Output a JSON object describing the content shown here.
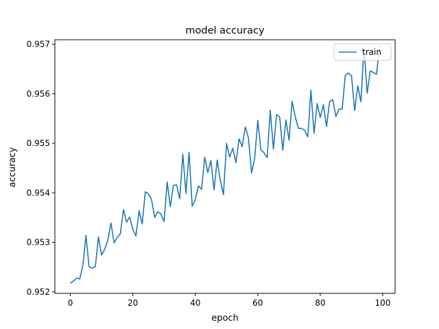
{
  "chart_data": {
    "type": "line",
    "title": "model accuracy",
    "xlabel": "epoch",
    "ylabel": "accuracy",
    "xlim": [
      -4.95,
      103.95
    ],
    "ylim": [
      0.95197,
      0.95709
    ],
    "x_ticks": [
      0,
      20,
      40,
      60,
      80,
      100
    ],
    "y_ticks": [
      0.952,
      0.953,
      0.954,
      0.955,
      0.956,
      0.957
    ],
    "x_tick_labels": [
      "0",
      "20",
      "40",
      "60",
      "80",
      "100"
    ],
    "y_tick_labels": [
      "0.952",
      "0.953",
      "0.954",
      "0.955",
      "0.956",
      "0.957"
    ],
    "grid": false,
    "legend": {
      "position": "top-right"
    },
    "series": [
      {
        "name": "train",
        "color": "#1f77b4",
        "x_start": 0,
        "x_step": 1,
        "values": [
          0.95217,
          0.95222,
          0.95228,
          0.95226,
          0.95253,
          0.95314,
          0.95251,
          0.95248,
          0.95251,
          0.95311,
          0.95274,
          0.95286,
          0.95304,
          0.95339,
          0.95299,
          0.9531,
          0.95317,
          0.95366,
          0.95341,
          0.95351,
          0.95326,
          0.95313,
          0.95364,
          0.95337,
          0.95402,
          0.95398,
          0.95386,
          0.9535,
          0.95362,
          0.95357,
          0.95342,
          0.95422,
          0.95372,
          0.95415,
          0.95416,
          0.95388,
          0.95478,
          0.95399,
          0.95482,
          0.95373,
          0.95386,
          0.95414,
          0.95407,
          0.95472,
          0.95441,
          0.95465,
          0.95406,
          0.95466,
          0.95425,
          0.95396,
          0.955,
          0.95472,
          0.9549,
          0.95461,
          0.95509,
          0.95493,
          0.95533,
          0.95511,
          0.9544,
          0.9547,
          0.95546,
          0.95486,
          0.95481,
          0.95471,
          0.95567,
          0.95488,
          0.95558,
          0.95553,
          0.95486,
          0.95547,
          0.95506,
          0.95585,
          0.95553,
          0.9553,
          0.9553,
          0.95526,
          0.95513,
          0.95607,
          0.9552,
          0.9558,
          0.95552,
          0.95578,
          0.95534,
          0.95584,
          0.95588,
          0.95554,
          0.95569,
          0.95569,
          0.95637,
          0.95642,
          0.95636,
          0.95566,
          0.95616,
          0.95584,
          0.95694,
          0.95601,
          0.95646,
          0.95643,
          0.95639,
          0.95698
        ]
      }
    ]
  }
}
